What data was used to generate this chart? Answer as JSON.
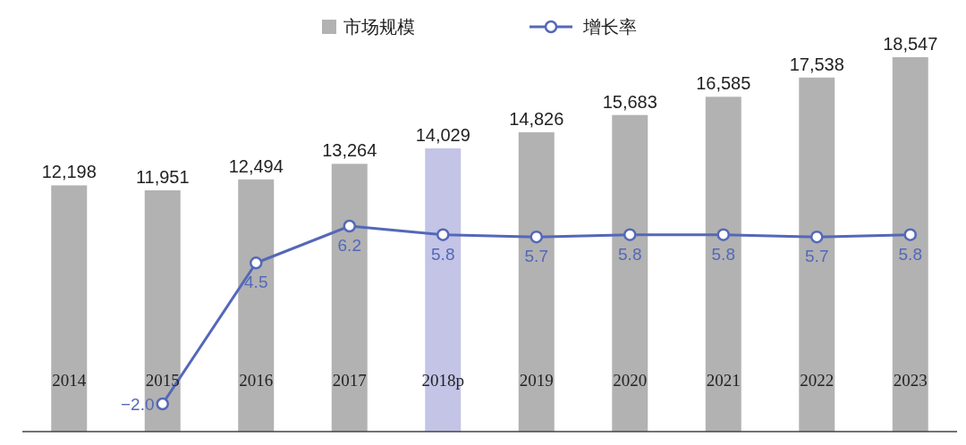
{
  "chart_data": {
    "type": "bar",
    "categories": [
      "2014",
      "2015",
      "2016",
      "2017",
      "2018p",
      "2019",
      "2020",
      "2021",
      "2022",
      "2023"
    ],
    "series": [
      {
        "name": "市场规模",
        "color": "#b2b2b2",
        "colors": [
          "#b2b2b2",
          "#b2b2b2",
          "#b2b2b2",
          "#b2b2b2",
          "#c3c4e6",
          "#b2b2b2",
          "#b2b2b2",
          "#b2b2b2",
          "#b2b2b2",
          "#b2b2b2"
        ],
        "values": [
          12198,
          11951,
          12494,
          13264,
          14029,
          14826,
          15683,
          16585,
          17538,
          18547
        ],
        "value_labels": [
          "12,198",
          "11,951",
          "12,494",
          "13,264",
          "14,029",
          "14,826",
          "15,683",
          "16,585",
          "17,538",
          "18,547"
        ]
      },
      {
        "name": "增长率",
        "type": "line",
        "axis": "y2",
        "color": "#5468b8",
        "marker": "circle",
        "values": [
          null,
          -2.0,
          4.5,
          6.2,
          5.8,
          5.7,
          5.8,
          5.8,
          5.7,
          5.8
        ],
        "value_labels": [
          null,
          "−2.0",
          "4.5",
          "6.2",
          "5.8",
          "5.7",
          "5.8",
          "5.8",
          "5.7",
          "5.8"
        ]
      }
    ],
    "legend": "top"
  }
}
